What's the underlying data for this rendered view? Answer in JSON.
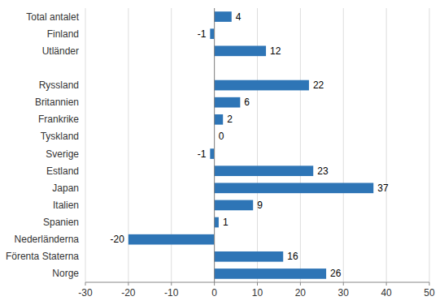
{
  "chart_data": {
    "type": "bar",
    "orientation": "horizontal",
    "categories": [
      "Total antalet",
      "Finland",
      "Utländer",
      null,
      "Ryssland",
      "Britannien",
      "Frankrike",
      "Tyskland",
      "Sverige",
      "Estland",
      "Japan",
      "Italien",
      "Spanien",
      "Nederländerna",
      "Förenta Staterna",
      "Norge"
    ],
    "values": [
      4,
      -1,
      12,
      null,
      22,
      6,
      2,
      0,
      -1,
      23,
      37,
      9,
      1,
      -20,
      16,
      26
    ],
    "color": "#2e75b6",
    "xlim": [
      -30,
      50
    ],
    "xticks": [
      -30,
      -20,
      -10,
      0,
      10,
      20,
      30,
      40,
      50
    ],
    "grid": true,
    "data_labels": true
  }
}
